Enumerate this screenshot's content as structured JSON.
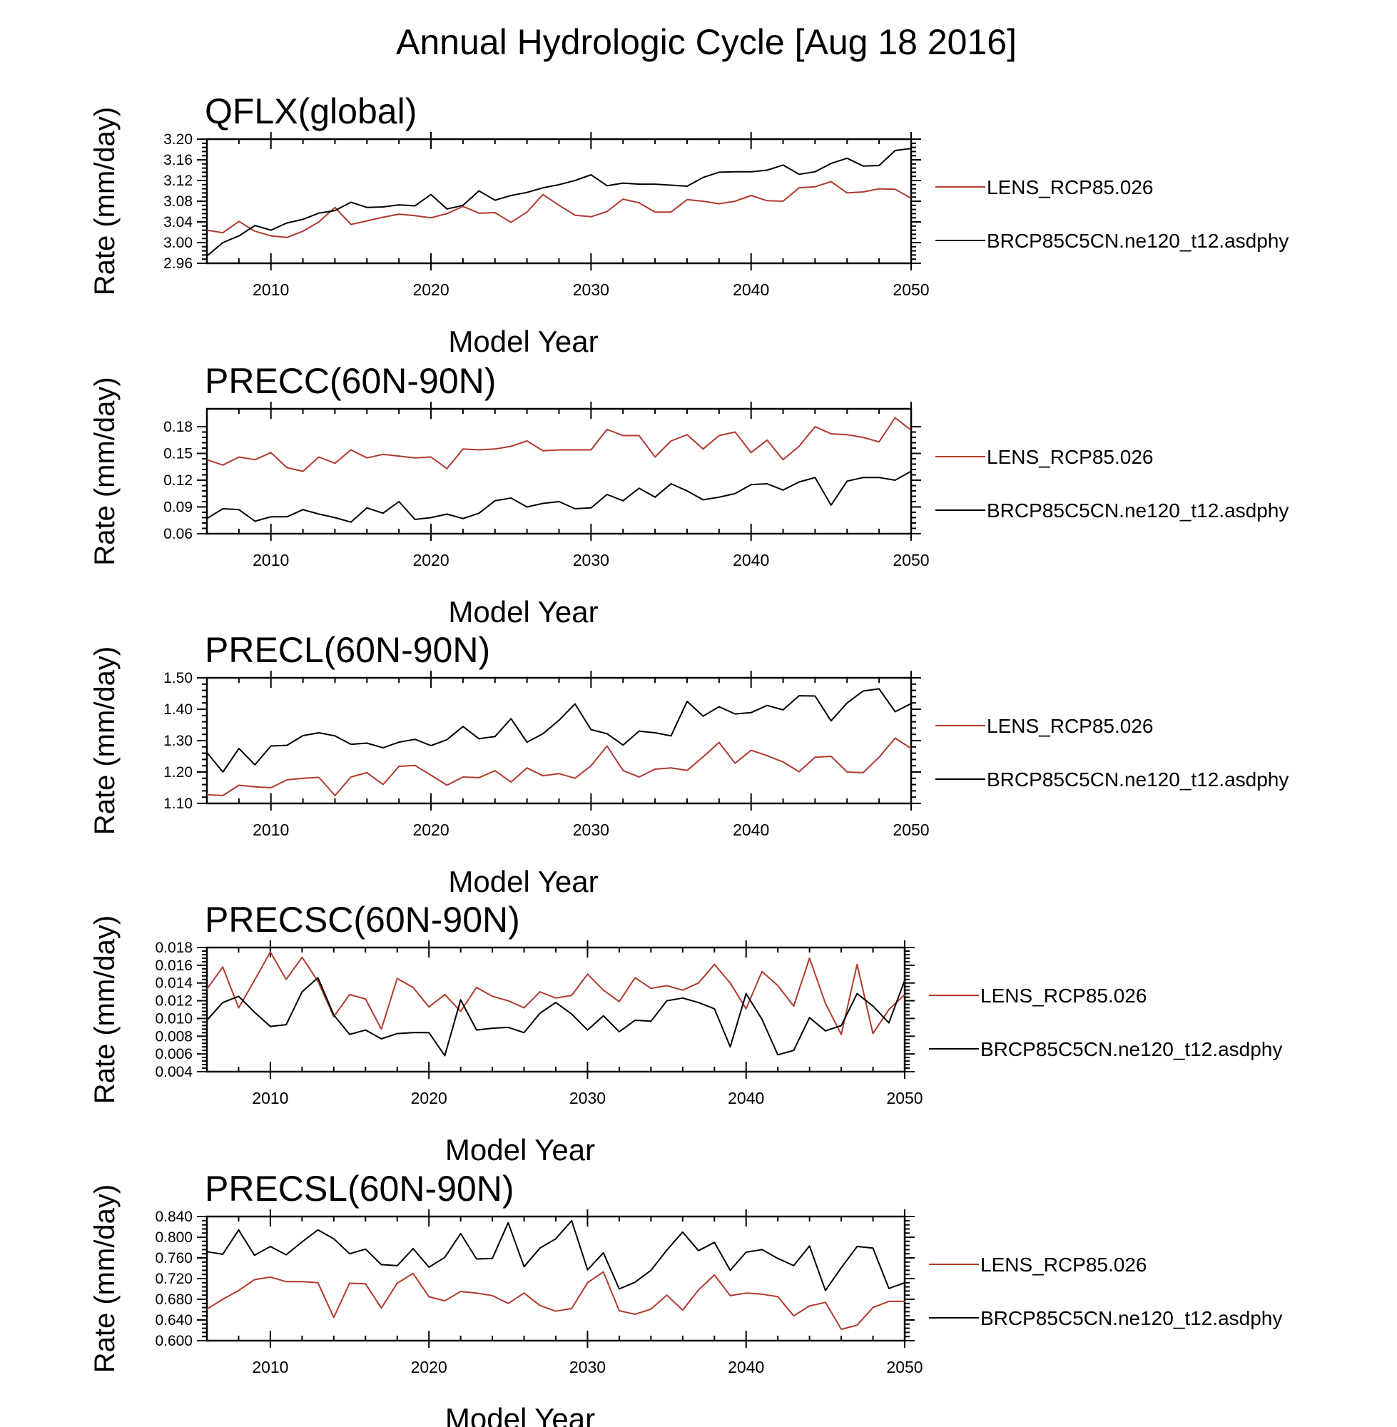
{
  "title": "Annual Hydrologic Cycle [Aug 18 2016]",
  "colors": {
    "LENS_RCP85.026": "#b03a2e",
    "BRCP85C5CN.ne120_t12.asdphy": "#000000"
  },
  "chart_data": [
    {
      "type": "line",
      "title": "QFLX(global)",
      "xlabel": "Model Year",
      "ylabel": "Rate (mm/day)",
      "xlim": [
        2006,
        2050
      ],
      "ylim": [
        2.96,
        3.2
      ],
      "yticks": [
        "2.96",
        "3.00",
        "3.04",
        "3.08",
        "3.12",
        "3.16",
        "3.20"
      ],
      "xticks": [
        "2010",
        "2020",
        "2030",
        "2040",
        "2050"
      ],
      "legend_position": "right",
      "x": [
        2006,
        2007,
        2008,
        2009,
        2010,
        2011,
        2012,
        2013,
        2014,
        2015,
        2016,
        2017,
        2018,
        2019,
        2020,
        2021,
        2022,
        2023,
        2024,
        2025,
        2026,
        2027,
        2028,
        2029,
        2030,
        2031,
        2032,
        2033,
        2034,
        2035,
        2036,
        2037,
        2038,
        2039,
        2040,
        2041,
        2042,
        2043,
        2044,
        2045,
        2046,
        2047,
        2048,
        2049,
        2050
      ],
      "series": [
        {
          "name": "LENS_RCP85.026",
          "values": [
            3.024,
            3.019,
            3.041,
            3.022,
            3.013,
            3.01,
            3.022,
            3.04,
            3.068,
            3.035,
            3.042,
            3.049,
            3.055,
            3.052,
            3.048,
            3.056,
            3.07,
            3.057,
            3.058,
            3.039,
            3.059,
            3.093,
            3.072,
            3.053,
            3.05,
            3.06,
            3.084,
            3.077,
            3.059,
            3.059,
            3.083,
            3.08,
            3.075,
            3.08,
            3.091,
            3.081,
            3.08,
            3.106,
            3.108,
            3.118,
            3.096,
            3.098,
            3.104,
            3.103,
            3.086
          ]
        },
        {
          "name": "BRCP85C5CN.ne120_t12.asdphy",
          "values": [
            2.974,
            3.0,
            3.013,
            3.033,
            3.024,
            3.038,
            3.045,
            3.057,
            3.062,
            3.078,
            3.068,
            3.069,
            3.073,
            3.071,
            3.093,
            3.065,
            3.072,
            3.1,
            3.082,
            3.091,
            3.097,
            3.106,
            3.112,
            3.12,
            3.131,
            3.11,
            3.115,
            3.113,
            3.113,
            3.111,
            3.109,
            3.126,
            3.136,
            3.137,
            3.137,
            3.14,
            3.15,
            3.132,
            3.137,
            3.153,
            3.163,
            3.148,
            3.149,
            3.178,
            3.182
          ]
        }
      ]
    },
    {
      "type": "line",
      "title": "PRECC(60N-90N)",
      "xlabel": "Model Year",
      "ylabel": "Rate (mm/day)",
      "xlim": [
        2006,
        2050
      ],
      "ylim": [
        0.06,
        0.2
      ],
      "yticks": [
        "0.06",
        "0.09",
        "0.12",
        "0.15",
        "0.18"
      ],
      "xticks": [
        "2010",
        "2020",
        "2030",
        "2040",
        "2050"
      ],
      "legend_position": "right",
      "x": [
        2006,
        2007,
        2008,
        2009,
        2010,
        2011,
        2012,
        2013,
        2014,
        2015,
        2016,
        2017,
        2018,
        2019,
        2020,
        2021,
        2022,
        2023,
        2024,
        2025,
        2026,
        2027,
        2028,
        2029,
        2030,
        2031,
        2032,
        2033,
        2034,
        2035,
        2036,
        2037,
        2038,
        2039,
        2040,
        2041,
        2042,
        2043,
        2044,
        2045,
        2046,
        2047,
        2048,
        2049,
        2050
      ],
      "series": [
        {
          "name": "LENS_RCP85.026",
          "values": [
            0.143,
            0.137,
            0.146,
            0.143,
            0.151,
            0.134,
            0.13,
            0.146,
            0.139,
            0.154,
            0.145,
            0.149,
            0.147,
            0.145,
            0.146,
            0.133,
            0.155,
            0.154,
            0.155,
            0.158,
            0.164,
            0.153,
            0.154,
            0.154,
            0.154,
            0.177,
            0.17,
            0.17,
            0.146,
            0.164,
            0.171,
            0.155,
            0.17,
            0.174,
            0.151,
            0.165,
            0.143,
            0.158,
            0.18,
            0.172,
            0.171,
            0.168,
            0.163,
            0.19,
            0.176
          ]
        },
        {
          "name": "BRCP85C5CN.ne120_t12.asdphy",
          "values": [
            0.077,
            0.088,
            0.087,
            0.074,
            0.079,
            0.079,
            0.087,
            0.082,
            0.078,
            0.073,
            0.089,
            0.083,
            0.096,
            0.076,
            0.078,
            0.082,
            0.077,
            0.083,
            0.097,
            0.1,
            0.09,
            0.094,
            0.096,
            0.088,
            0.089,
            0.104,
            0.097,
            0.111,
            0.101,
            0.116,
            0.108,
            0.098,
            0.101,
            0.105,
            0.115,
            0.116,
            0.109,
            0.118,
            0.123,
            0.092,
            0.119,
            0.123,
            0.123,
            0.12,
            0.13
          ]
        }
      ]
    },
    {
      "type": "line",
      "title": "PRECL(60N-90N)",
      "xlabel": "Model Year",
      "ylabel": "Rate (mm/day)",
      "xlim": [
        2006,
        2050
      ],
      "ylim": [
        1.1,
        1.5
      ],
      "yticks": [
        "1.10",
        "1.20",
        "1.30",
        "1.40",
        "1.50"
      ],
      "xticks": [
        "2010",
        "2020",
        "2030",
        "2040",
        "2050"
      ],
      "legend_position": "right",
      "x": [
        2006,
        2007,
        2008,
        2009,
        2010,
        2011,
        2012,
        2013,
        2014,
        2015,
        2016,
        2017,
        2018,
        2019,
        2020,
        2021,
        2022,
        2023,
        2024,
        2025,
        2026,
        2027,
        2028,
        2029,
        2030,
        2031,
        2032,
        2033,
        2034,
        2035,
        2036,
        2037,
        2038,
        2039,
        2040,
        2041,
        2042,
        2043,
        2044,
        2045,
        2046,
        2047,
        2048,
        2049,
        2050
      ],
      "series": [
        {
          "name": "LENS_RCP85.026",
          "values": [
            1.128,
            1.125,
            1.158,
            1.153,
            1.15,
            1.175,
            1.18,
            1.183,
            1.125,
            1.184,
            1.198,
            1.16,
            1.218,
            1.221,
            1.19,
            1.158,
            1.184,
            1.182,
            1.204,
            1.168,
            1.213,
            1.188,
            1.195,
            1.18,
            1.22,
            1.283,
            1.205,
            1.184,
            1.209,
            1.213,
            1.205,
            1.248,
            1.294,
            1.228,
            1.269,
            1.252,
            1.232,
            1.201,
            1.247,
            1.25,
            1.2,
            1.198,
            1.247,
            1.308,
            1.275
          ]
        },
        {
          "name": "BRCP85C5CN.ne120_t12.asdphy",
          "values": [
            1.262,
            1.2,
            1.275,
            1.223,
            1.283,
            1.285,
            1.316,
            1.325,
            1.315,
            1.288,
            1.292,
            1.277,
            1.295,
            1.304,
            1.284,
            1.303,
            1.345,
            1.306,
            1.313,
            1.37,
            1.295,
            1.322,
            1.365,
            1.417,
            1.335,
            1.322,
            1.286,
            1.33,
            1.325,
            1.315,
            1.425,
            1.378,
            1.408,
            1.385,
            1.389,
            1.412,
            1.398,
            1.443,
            1.442,
            1.363,
            1.42,
            1.458,
            1.465,
            1.392,
            1.418
          ]
        }
      ]
    },
    {
      "type": "line",
      "title": "PRECSC(60N-90N)",
      "xlabel": "Model Year",
      "ylabel": "Rate (mm/day)",
      "xlim": [
        2006,
        2050
      ],
      "ylim": [
        0.004,
        0.018
      ],
      "yticks": [
        "0.004",
        "0.006",
        "0.008",
        "0.010",
        "0.012",
        "0.014",
        "0.016",
        "0.018"
      ],
      "xticks": [
        "2010",
        "2020",
        "2030",
        "2040",
        "2050"
      ],
      "legend_position": "right",
      "x": [
        2006,
        2007,
        2008,
        2009,
        2010,
        2011,
        2012,
        2013,
        2014,
        2015,
        2016,
        2017,
        2018,
        2019,
        2020,
        2021,
        2022,
        2023,
        2024,
        2025,
        2026,
        2027,
        2028,
        2029,
        2030,
        2031,
        2032,
        2033,
        2034,
        2035,
        2036,
        2037,
        2038,
        2039,
        2040,
        2041,
        2042,
        2043,
        2044,
        2045,
        2046,
        2047,
        2048,
        2049,
        2050
      ],
      "series": [
        {
          "name": "LENS_RCP85.026",
          "values": [
            0.0133,
            0.0158,
            0.0112,
            0.0143,
            0.0175,
            0.0144,
            0.0169,
            0.0142,
            0.0102,
            0.0127,
            0.0122,
            0.0088,
            0.0145,
            0.0135,
            0.0113,
            0.0127,
            0.0108,
            0.0135,
            0.0125,
            0.012,
            0.0112,
            0.013,
            0.0123,
            0.0126,
            0.015,
            0.0132,
            0.0119,
            0.0146,
            0.0134,
            0.0137,
            0.0132,
            0.014,
            0.0161,
            0.014,
            0.0111,
            0.0153,
            0.0137,
            0.0114,
            0.0168,
            0.0117,
            0.0082,
            0.0161,
            0.0083,
            0.011,
            0.0127
          ]
        },
        {
          "name": "BRCP85C5CN.ne120_t12.asdphy",
          "values": [
            0.0098,
            0.0118,
            0.0125,
            0.0107,
            0.0091,
            0.0093,
            0.013,
            0.0146,
            0.0104,
            0.0082,
            0.0087,
            0.0077,
            0.0083,
            0.0084,
            0.0084,
            0.0058,
            0.0121,
            0.0087,
            0.0089,
            0.009,
            0.0084,
            0.0106,
            0.0118,
            0.0105,
            0.0087,
            0.0103,
            0.0085,
            0.0098,
            0.0097,
            0.012,
            0.0123,
            0.0118,
            0.0111,
            0.0068,
            0.0128,
            0.0099,
            0.0059,
            0.0064,
            0.0101,
            0.0086,
            0.0092,
            0.0128,
            0.0114,
            0.0095,
            0.0143
          ]
        }
      ]
    },
    {
      "type": "line",
      "title": "PRECSL(60N-90N)",
      "xlabel": "Model Year",
      "ylabel": "Rate (mm/day)",
      "xlim": [
        2006,
        2050
      ],
      "ylim": [
        0.6,
        0.84
      ],
      "yticks": [
        "0.600",
        "0.640",
        "0.680",
        "0.720",
        "0.760",
        "0.800",
        "0.840"
      ],
      "xticks": [
        "2010",
        "2020",
        "2030",
        "2040",
        "2050"
      ],
      "legend_position": "right",
      "x": [
        2006,
        2007,
        2008,
        2009,
        2010,
        2011,
        2012,
        2013,
        2014,
        2015,
        2016,
        2017,
        2018,
        2019,
        2020,
        2021,
        2022,
        2023,
        2024,
        2025,
        2026,
        2027,
        2028,
        2029,
        2030,
        2031,
        2032,
        2033,
        2034,
        2035,
        2036,
        2037,
        2038,
        2039,
        2040,
        2041,
        2042,
        2043,
        2044,
        2045,
        2046,
        2047,
        2048,
        2049,
        2050
      ],
      "series": [
        {
          "name": "LENS_RCP85.026",
          "values": [
            0.661,
            0.68,
            0.697,
            0.718,
            0.723,
            0.714,
            0.714,
            0.712,
            0.645,
            0.711,
            0.71,
            0.663,
            0.711,
            0.73,
            0.685,
            0.677,
            0.695,
            0.692,
            0.687,
            0.672,
            0.692,
            0.668,
            0.657,
            0.662,
            0.712,
            0.733,
            0.658,
            0.651,
            0.661,
            0.688,
            0.659,
            0.698,
            0.727,
            0.687,
            0.692,
            0.69,
            0.685,
            0.648,
            0.667,
            0.674,
            0.622,
            0.63,
            0.664,
            0.676,
            0.676
          ]
        },
        {
          "name": "BRCP85C5CN.ne120_t12.asdphy",
          "values": [
            0.772,
            0.767,
            0.814,
            0.765,
            0.782,
            0.766,
            0.791,
            0.814,
            0.797,
            0.768,
            0.777,
            0.747,
            0.745,
            0.778,
            0.742,
            0.761,
            0.807,
            0.758,
            0.759,
            0.828,
            0.743,
            0.779,
            0.797,
            0.832,
            0.737,
            0.77,
            0.7,
            0.713,
            0.736,
            0.775,
            0.81,
            0.774,
            0.79,
            0.736,
            0.771,
            0.776,
            0.759,
            0.745,
            0.783,
            0.697,
            0.741,
            0.782,
            0.779,
            0.701,
            0.712
          ]
        }
      ]
    }
  ]
}
